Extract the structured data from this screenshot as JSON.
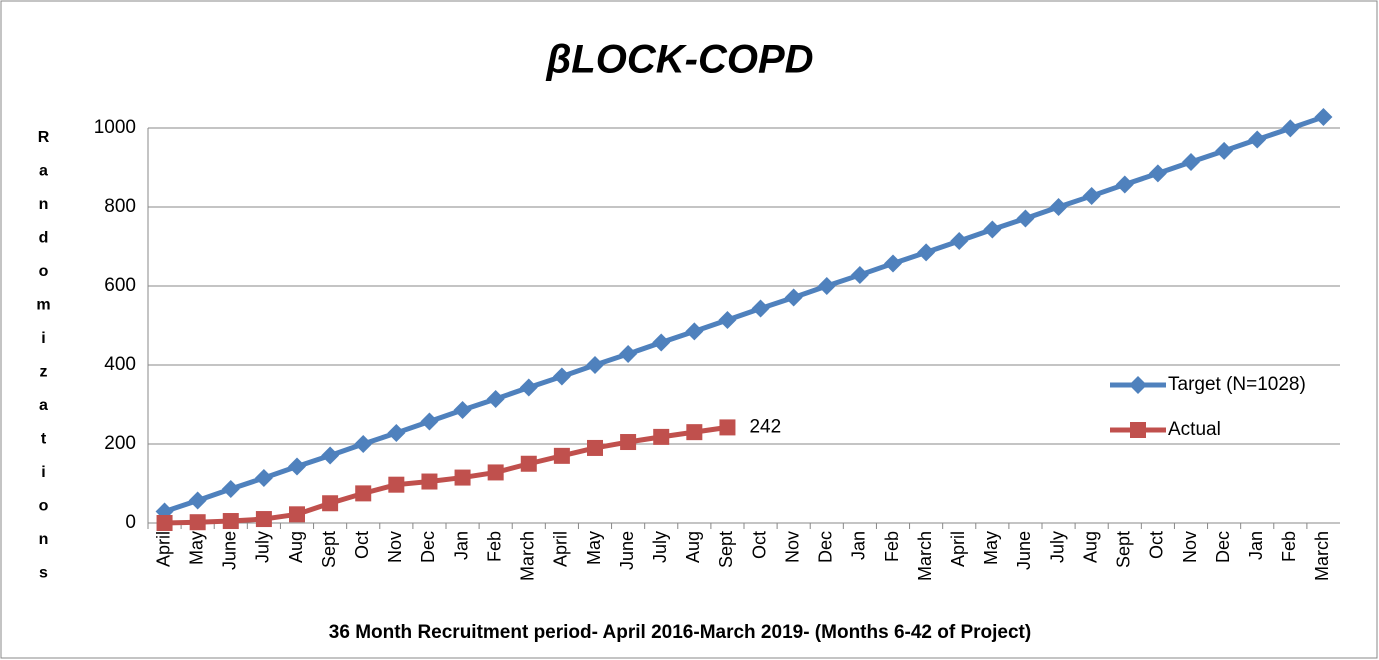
{
  "chart_data": {
    "type": "line",
    "title": "βLOCK-COPD",
    "y_label": "Randomizations",
    "x_label": "36 Month Recruitment period- April 2016-March 2019- (Months 6-42 of Project)",
    "categories": [
      "April",
      "May",
      "June",
      "July",
      "Aug",
      "Sept",
      "Oct",
      "Nov",
      "Dec",
      "Jan",
      "Feb",
      "March",
      "April",
      "May",
      "June",
      "July",
      "Aug",
      "Sept",
      "Oct",
      "Nov",
      "Dec",
      "Jan",
      "Feb",
      "March",
      "April",
      "May",
      "June",
      "July",
      "Aug",
      "Sept",
      "Oct",
      "Nov",
      "Dec",
      "Jan",
      "Feb",
      "March"
    ],
    "series": [
      {
        "name": "Target (N=1028)",
        "color": "#4f81bd",
        "marker": "diamond",
        "values": [
          29,
          57,
          86,
          114,
          143,
          171,
          200,
          228,
          257,
          286,
          314,
          343,
          371,
          400,
          428,
          457,
          485,
          514,
          543,
          571,
          600,
          628,
          657,
          685,
          714,
          743,
          771,
          800,
          828,
          857,
          885,
          914,
          942,
          971,
          999,
          1028
        ]
      },
      {
        "name": "Actual",
        "color": "#c0504d",
        "marker": "square",
        "values": [
          0,
          2,
          5,
          10,
          22,
          50,
          75,
          97,
          105,
          115,
          128,
          150,
          170,
          190,
          205,
          218,
          230,
          242,
          null,
          null,
          null,
          null,
          null,
          null,
          null,
          null,
          null,
          null,
          null,
          null,
          null,
          null,
          null,
          null,
          null,
          null
        ],
        "data_labels": {
          "17": "242"
        }
      }
    ],
    "ylim": [
      0,
      1000
    ],
    "yticks": [
      0,
      200,
      400,
      600,
      800,
      1000
    ],
    "grid": true,
    "legend": "right"
  }
}
